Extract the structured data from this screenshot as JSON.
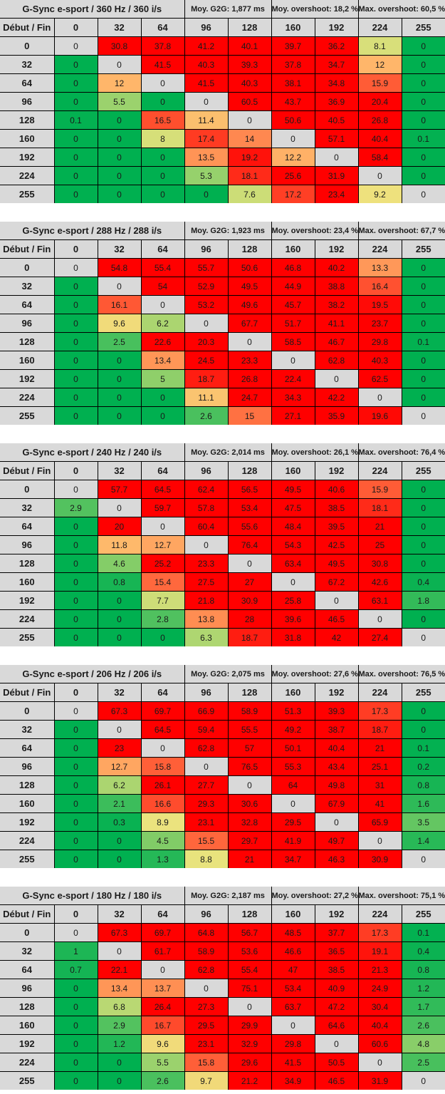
{
  "chart_data": [
    {
      "type": "heatmap",
      "title": "G-Sync e-sport / 360 Hz / 360 i/s",
      "stats": {
        "g2g": "Moy. G2G: 1,877 ms",
        "avg_overshoot": "Moy. overshoot: 18,2 %",
        "max_overshoot": "Max. overshoot: 60,5 %"
      },
      "corner_label": "Début / Fin",
      "columns": [
        "0",
        "32",
        "64",
        "96",
        "128",
        "160",
        "192",
        "224",
        "255"
      ],
      "rows": [
        "0",
        "32",
        "64",
        "96",
        "128",
        "160",
        "192",
        "224",
        "255"
      ],
      "values": [
        [
          "0",
          "30.8",
          "37.8",
          "41.2",
          "40.1",
          "39.7",
          "36.2",
          "8.1",
          "0"
        ],
        [
          "0",
          "0",
          "41.5",
          "40.3",
          "39.3",
          "37.8",
          "34.7",
          "12",
          "0"
        ],
        [
          "0",
          "12",
          "0",
          "41.5",
          "40.3",
          "38.1",
          "34.8",
          "15.9",
          "0"
        ],
        [
          "0",
          "5.5",
          "0",
          "0",
          "60.5",
          "43.7",
          "36.9",
          "20.4",
          "0"
        ],
        [
          "0.1",
          "0",
          "16.5",
          "11.4",
          "0",
          "50.6",
          "40.5",
          "26.8",
          "0"
        ],
        [
          "0",
          "0",
          "8",
          "17.4",
          "14",
          "0",
          "57.1",
          "40.4",
          "0.1"
        ],
        [
          "0",
          "0",
          "0",
          "13.5",
          "19.2",
          "12.2",
          "0",
          "58.4",
          "0"
        ],
        [
          "0",
          "0",
          "0",
          "5.3",
          "18.1",
          "25.6",
          "31.9",
          "0",
          "0"
        ],
        [
          "0",
          "0",
          "0",
          "0",
          "7.6",
          "17.2",
          "23.4",
          "9.2",
          "0"
        ]
      ]
    },
    {
      "type": "heatmap",
      "title": "G-Sync e-sport / 288 Hz / 288 i/s",
      "stats": {
        "g2g": "Moy. G2G: 1,923 ms",
        "avg_overshoot": "Moy. overshoot: 23,4 %",
        "max_overshoot": "Max. overshoot: 67,7 %"
      },
      "corner_label": "Début / Fin",
      "columns": [
        "0",
        "32",
        "64",
        "96",
        "128",
        "160",
        "192",
        "224",
        "255"
      ],
      "rows": [
        "0",
        "32",
        "64",
        "96",
        "128",
        "160",
        "192",
        "224",
        "255"
      ],
      "values": [
        [
          "0",
          "54.8",
          "55.4",
          "55.7",
          "50.6",
          "46.8",
          "40.2",
          "13.3",
          "0"
        ],
        [
          "0",
          "0",
          "54",
          "52.9",
          "49.5",
          "44.9",
          "38.8",
          "16.4",
          "0"
        ],
        [
          "0",
          "16.1",
          "0",
          "53.2",
          "49.6",
          "45.7",
          "38.2",
          "19.5",
          "0"
        ],
        [
          "0",
          "9.6",
          "6.2",
          "0",
          "67.7",
          "51.7",
          "41.1",
          "23.7",
          "0"
        ],
        [
          "0",
          "2.5",
          "22.6",
          "20.3",
          "0",
          "58.5",
          "46.7",
          "29.8",
          "0.1"
        ],
        [
          "0",
          "0",
          "13.4",
          "24.5",
          "23.3",
          "0",
          "62.8",
          "40.3",
          "0"
        ],
        [
          "0",
          "0",
          "5",
          "18.7",
          "26.8",
          "22.4",
          "0",
          "62.5",
          "0"
        ],
        [
          "0",
          "0",
          "0",
          "11.1",
          "24.7",
          "34.3",
          "42.2",
          "0",
          "0"
        ],
        [
          "0",
          "0",
          "0",
          "2.6",
          "15",
          "27.1",
          "35.9",
          "19.6",
          "0"
        ]
      ]
    },
    {
      "type": "heatmap",
      "title": "G-Sync e-sport / 240 Hz / 240 i/s",
      "stats": {
        "g2g": "Moy. G2G: 2,014 ms",
        "avg_overshoot": "Moy. overshoot: 26,1 %",
        "max_overshoot": "Max. overshoot: 76,4 %"
      },
      "corner_label": "Début / Fin",
      "columns": [
        "0",
        "32",
        "64",
        "96",
        "128",
        "160",
        "192",
        "224",
        "255"
      ],
      "rows": [
        "0",
        "32",
        "64",
        "96",
        "128",
        "160",
        "192",
        "224",
        "255"
      ],
      "values": [
        [
          "0",
          "57.7",
          "64.5",
          "62.4",
          "56.5",
          "49.5",
          "40.6",
          "15.9",
          "0"
        ],
        [
          "2.9",
          "0",
          "59.7",
          "57.8",
          "53.4",
          "47.5",
          "38.5",
          "18.1",
          "0"
        ],
        [
          "0",
          "20",
          "0",
          "60.4",
          "55.6",
          "48.4",
          "39.5",
          "21",
          "0"
        ],
        [
          "0",
          "11.8",
          "12.7",
          "0",
          "76.4",
          "54.3",
          "42.5",
          "25",
          "0"
        ],
        [
          "0",
          "4.6",
          "25.2",
          "23.3",
          "0",
          "63.4",
          "49.5",
          "30.8",
          "0"
        ],
        [
          "0",
          "0.8",
          "15.4",
          "27.5",
          "27",
          "0",
          "67.2",
          "42.6",
          "0.4"
        ],
        [
          "0",
          "0",
          "7.7",
          "21.8",
          "30.9",
          "25.8",
          "0",
          "63.1",
          "1.8"
        ],
        [
          "0",
          "0",
          "2.8",
          "13.8",
          "28",
          "39.6",
          "46.5",
          "0",
          "0"
        ],
        [
          "0",
          "0",
          "0",
          "6.3",
          "18.7",
          "31.8",
          "42",
          "27.4",
          "0"
        ]
      ]
    },
    {
      "type": "heatmap",
      "title": "G-Sync e-sport / 206 Hz / 206 i/s",
      "stats": {
        "g2g": "Moy. G2G: 2,075 ms",
        "avg_overshoot": "Moy. overshoot: 27,6 %",
        "max_overshoot": "Max. overshoot: 76,5 %"
      },
      "corner_label": "Début / Fin",
      "columns": [
        "0",
        "32",
        "64",
        "96",
        "128",
        "160",
        "192",
        "224",
        "255"
      ],
      "rows": [
        "0",
        "32",
        "64",
        "96",
        "128",
        "160",
        "192",
        "224",
        "255"
      ],
      "values": [
        [
          "0",
          "67.3",
          "69.7",
          "66.9",
          "58.9",
          "51.3",
          "39.3",
          "17.3",
          "0"
        ],
        [
          "0",
          "0",
          "64.5",
          "59.4",
          "55.5",
          "49.2",
          "38.7",
          "18.7",
          "0"
        ],
        [
          "0",
          "23",
          "0",
          "62.8",
          "57",
          "50.1",
          "40.4",
          "21",
          "0.1"
        ],
        [
          "0",
          "12.7",
          "15.8",
          "0",
          "76.5",
          "55.3",
          "43.4",
          "25.1",
          "0.2"
        ],
        [
          "0",
          "6.2",
          "26.1",
          "27.7",
          "0",
          "64",
          "49.8",
          "31",
          "0.8"
        ],
        [
          "0",
          "2.1",
          "16.6",
          "29.3",
          "30.6",
          "0",
          "67.9",
          "41",
          "1.6"
        ],
        [
          "0",
          "0.3",
          "8.9",
          "23.1",
          "32.8",
          "29.5",
          "0",
          "65.9",
          "3.5"
        ],
        [
          "0",
          "0",
          "4.5",
          "15.5",
          "29.7",
          "41.9",
          "49.7",
          "0",
          "1.4"
        ],
        [
          "0",
          "0",
          "1.3",
          "8.8",
          "21",
          "34.7",
          "46.3",
          "30.9",
          "0"
        ]
      ]
    },
    {
      "type": "heatmap",
      "title": "G-Sync e-sport / 180 Hz / 180 i/s",
      "stats": {
        "g2g": "Moy. G2G: 2,187 ms",
        "avg_overshoot": "Moy. overshoot: 27,2 %",
        "max_overshoot": "Max. overshoot: 75,1 %"
      },
      "corner_label": "Début / Fin",
      "columns": [
        "0",
        "32",
        "64",
        "96",
        "128",
        "160",
        "192",
        "224",
        "255"
      ],
      "rows": [
        "0",
        "32",
        "64",
        "96",
        "128",
        "160",
        "192",
        "224",
        "255"
      ],
      "values": [
        [
          "0",
          "67.3",
          "69.7",
          "64.8",
          "56.7",
          "48.5",
          "37.7",
          "17.3",
          "0.1"
        ],
        [
          "1",
          "0",
          "61.7",
          "58.9",
          "53.6",
          "46.6",
          "36.5",
          "19.1",
          "0.4"
        ],
        [
          "0.7",
          "22.1",
          "0",
          "62.8",
          "55.4",
          "47",
          "38.5",
          "21.3",
          "0.8"
        ],
        [
          "0",
          "13.4",
          "13.7",
          "0",
          "75.1",
          "53.4",
          "40.9",
          "24.9",
          "1.2"
        ],
        [
          "0",
          "6.8",
          "26.4",
          "27.3",
          "0",
          "63.7",
          "47.2",
          "30.4",
          "1.7"
        ],
        [
          "0",
          "2.9",
          "16.7",
          "29.5",
          "29.9",
          "0",
          "64.6",
          "40.4",
          "2.6"
        ],
        [
          "0",
          "1.2",
          "9.6",
          "23.1",
          "32.9",
          "29.8",
          "0",
          "60.6",
          "4.8"
        ],
        [
          "0",
          "0",
          "5.5",
          "15.8",
          "29.6",
          "41.5",
          "50.5",
          "0",
          "2.5"
        ],
        [
          "0",
          "0",
          "2.6",
          "9.7",
          "21.2",
          "34.9",
          "46.5",
          "31.9",
          "0"
        ]
      ]
    }
  ],
  "colors": {
    "header_bg": "#d9d9d9",
    "diagonal_bg": "#d9d9d9",
    "scale": [
      {
        "v": 0,
        "color": "#00b050"
      },
      {
        "v": 5,
        "color": "#8fcf6a"
      },
      {
        "v": 9,
        "color": "#ede47e"
      },
      {
        "v": 12,
        "color": "#ffb66a"
      },
      {
        "v": 16,
        "color": "#ff5a35"
      },
      {
        "v": 20,
        "color": "#ff0000"
      }
    ]
  }
}
